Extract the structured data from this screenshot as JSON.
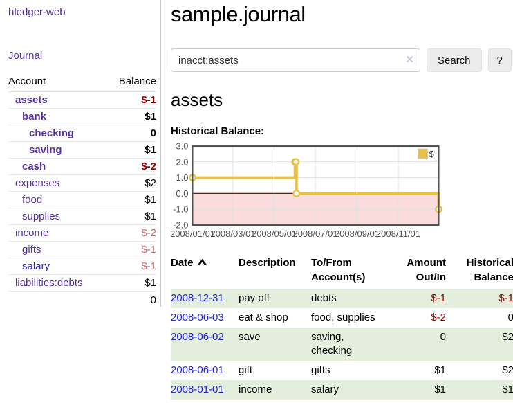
{
  "app": {
    "brand": "hledger-web"
  },
  "sidebar": {
    "journal_link": "Journal",
    "accounts": {
      "col_account": "Account",
      "col_balance": "Balance",
      "rows": [
        {
          "account": "assets",
          "balance": "$-1",
          "indent": 0,
          "bold": true,
          "balance_style": "neg-strong",
          "link_style": "purple"
        },
        {
          "account": "bank",
          "balance": "$1",
          "indent": 1,
          "bold": true,
          "balance_style": "normal",
          "link_style": "purple"
        },
        {
          "account": "checking",
          "balance": "0",
          "indent": 2,
          "bold": true,
          "balance_style": "normal",
          "link_style": "purple"
        },
        {
          "account": "saving",
          "balance": "$1",
          "indent": 2,
          "bold": true,
          "balance_style": "normal",
          "link_style": "purple"
        },
        {
          "account": "cash",
          "balance": "$-2",
          "indent": 1,
          "bold": true,
          "balance_style": "neg-strong",
          "link_style": "purple"
        },
        {
          "account": "expenses",
          "balance": "$2",
          "indent": 0,
          "bold": false,
          "balance_style": "normal",
          "link_style": "purple"
        },
        {
          "account": "food",
          "balance": "$1",
          "indent": 1,
          "bold": false,
          "balance_style": "normal",
          "link_style": "purple"
        },
        {
          "account": "supplies",
          "balance": "$1",
          "indent": 1,
          "bold": false,
          "balance_style": "normal",
          "link_style": "purple"
        },
        {
          "account": "income",
          "balance": "$-2",
          "indent": 0,
          "bold": false,
          "balance_style": "neg-soft",
          "link_style": "purple"
        },
        {
          "account": "gifts",
          "balance": "$-1",
          "indent": 1,
          "bold": false,
          "balance_style": "neg-soft",
          "link_style": "purple"
        },
        {
          "account": "salary",
          "balance": "$-1",
          "indent": 1,
          "bold": false,
          "balance_style": "neg-soft",
          "link_style": "blue"
        },
        {
          "account": "liabilities:debts",
          "balance": "$1",
          "indent": 0,
          "bold": false,
          "balance_style": "normal",
          "link_style": "purple"
        }
      ],
      "total": "0"
    }
  },
  "header": {
    "title": "sample.journal"
  },
  "search": {
    "value": "inacct:assets",
    "clear_icon": "✕",
    "button_label": "Search",
    "help_label": "?"
  },
  "account_page": {
    "heading": "assets",
    "chart_label": "Historical Balance:"
  },
  "chart_data": {
    "type": "line",
    "title": "Historical Balance",
    "step": true,
    "series": [
      {
        "name": "$",
        "points": [
          [
            "2008-01-01",
            1
          ],
          [
            "2008-06-01",
            2
          ],
          [
            "2008-06-02",
            2
          ],
          [
            "2008-06-03",
            0
          ],
          [
            "2008-12-31",
            -1
          ]
        ]
      }
    ],
    "xlim": [
      "2008-01-01",
      "2008-12-31"
    ],
    "ylim": [
      -2,
      3
    ],
    "x_ticks": [
      "2008/01/01",
      "2008/03/01",
      "2008/05/01",
      "2008/07/01",
      "2008/09/01",
      "2008/11/01"
    ],
    "y_ticks": [
      -2.0,
      -1.0,
      0.0,
      1.0,
      2.0,
      3.0
    ],
    "legend": {
      "label": "$",
      "position": "top-right"
    },
    "grid": true,
    "colors": {
      "line": "#e9c245",
      "marker_fill": "#ffffff",
      "negative_region": "#fbdcdc",
      "zero_line": "#a40000",
      "plot_border": "#545454",
      "gridline": "#e0e0e0",
      "tick_text": "#545454",
      "legend_border": "#cccccc"
    }
  },
  "register": {
    "headers": {
      "date": "Date",
      "description": "Description",
      "accounts": "To/From Account(s)",
      "amount": "Amount Out/In",
      "balance": "Historical Balance"
    },
    "rows": [
      {
        "date": "2008-12-31",
        "description": "pay off",
        "accounts": "debts",
        "amount": "$-1",
        "balance": "$-1",
        "amount_style": "neg-strong",
        "balance_style": "neg-strong"
      },
      {
        "date": "2008-06-03",
        "description": "eat & shop",
        "accounts": "food, supplies",
        "amount": "$-2",
        "balance": "0",
        "amount_style": "neg-strong",
        "balance_style": "normal"
      },
      {
        "date": "2008-06-02",
        "description": "save",
        "accounts": "saving, checking",
        "amount": "0",
        "balance": "$2",
        "amount_style": "normal",
        "balance_style": "normal"
      },
      {
        "date": "2008-06-01",
        "description": "gift",
        "accounts": "gifts",
        "amount": "$1",
        "balance": "$2",
        "amount_style": "normal",
        "balance_style": "normal"
      },
      {
        "date": "2008-01-01",
        "description": "income",
        "accounts": "salary",
        "amount": "$1",
        "balance": "$1",
        "amount_style": "normal",
        "balance_style": "normal"
      }
    ]
  },
  "colors": {
    "link_purple": "#55309b",
    "link_blue": "#2525d2",
    "neg_strong": "#8b0000",
    "neg_soft": "#b56a6a",
    "row_stripe": "#e4eedd"
  }
}
